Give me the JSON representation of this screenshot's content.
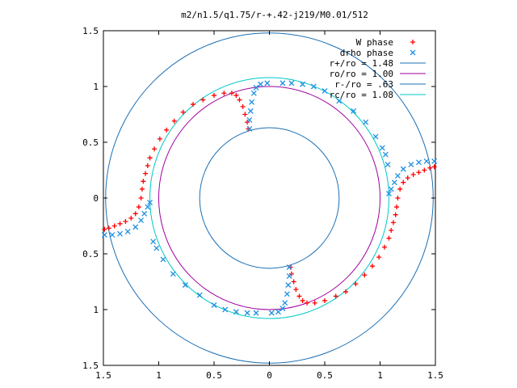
{
  "chart_data": {
    "type": "scatter",
    "title": "m2/n1.5/q1.75/r-+.42-j219/M0.01/512",
    "xlabel": "",
    "ylabel": "",
    "xlim": [
      -1.5,
      1.5
    ],
    "ylim": [
      -1.5,
      1.5
    ],
    "x_ticks": [
      -1.5,
      -1,
      -0.5,
      0,
      0.5,
      1,
      1.5
    ],
    "x_tick_labels": [
      "1.5",
      "1",
      "0.5",
      "0",
      "0.5",
      "1",
      "1.5"
    ],
    "y_ticks": [
      1.5,
      1,
      0.5,
      0,
      -0.5,
      -1,
      -1.5
    ],
    "y_tick_labels": [
      "1.5",
      "1",
      "0.5",
      "0",
      "0.5",
      "1",
      "1.5"
    ],
    "grid": false,
    "legend_position": "top-right",
    "series": [
      {
        "name": "W phase",
        "marker": "plus",
        "color": "#ff0000",
        "points": [
          [
            -1.49,
            -0.28
          ],
          [
            -1.45,
            -0.27
          ],
          [
            -1.4,
            -0.25
          ],
          [
            -1.35,
            -0.23
          ],
          [
            -1.3,
            -0.21
          ],
          [
            -1.25,
            -0.18
          ],
          [
            -1.21,
            -0.14
          ],
          [
            -1.18,
            -0.08
          ],
          [
            -1.16,
            0.0
          ],
          [
            -1.15,
            0.08
          ],
          [
            -1.14,
            0.15
          ],
          [
            -1.12,
            0.22
          ],
          [
            -1.1,
            0.29
          ],
          [
            -1.08,
            0.36
          ],
          [
            -1.04,
            0.44
          ],
          [
            -0.99,
            0.53
          ],
          [
            -0.93,
            0.61
          ],
          [
            -0.86,
            0.69
          ],
          [
            -0.78,
            0.77
          ],
          [
            -0.69,
            0.84
          ],
          [
            -0.6,
            0.88
          ],
          [
            -0.5,
            0.92
          ],
          [
            -0.41,
            0.94
          ],
          [
            -0.34,
            0.94
          ],
          [
            -0.3,
            0.92
          ],
          [
            -0.27,
            0.88
          ],
          [
            -0.24,
            0.82
          ],
          [
            -0.22,
            0.75
          ],
          [
            -0.2,
            0.68
          ],
          [
            -0.19,
            0.62
          ],
          [
            1.49,
            0.28
          ],
          [
            1.45,
            0.27
          ],
          [
            1.4,
            0.25
          ],
          [
            1.35,
            0.23
          ],
          [
            1.3,
            0.21
          ],
          [
            1.25,
            0.18
          ],
          [
            1.21,
            0.14
          ],
          [
            1.18,
            0.08
          ],
          [
            1.16,
            0.0
          ],
          [
            1.15,
            -0.08
          ],
          [
            1.14,
            -0.15
          ],
          [
            1.12,
            -0.22
          ],
          [
            1.1,
            -0.29
          ],
          [
            1.08,
            -0.36
          ],
          [
            1.04,
            -0.44
          ],
          [
            0.99,
            -0.53
          ],
          [
            0.93,
            -0.61
          ],
          [
            0.86,
            -0.69
          ],
          [
            0.78,
            -0.77
          ],
          [
            0.69,
            -0.84
          ],
          [
            0.6,
            -0.88
          ],
          [
            0.5,
            -0.92
          ],
          [
            0.41,
            -0.94
          ],
          [
            0.34,
            -0.94
          ],
          [
            0.3,
            -0.92
          ],
          [
            0.27,
            -0.88
          ],
          [
            0.24,
            -0.82
          ],
          [
            0.22,
            -0.75
          ],
          [
            0.2,
            -0.68
          ],
          [
            0.19,
            -0.62
          ]
        ]
      },
      {
        "name": "drho phase",
        "marker": "cross",
        "color": "#1e8fe0",
        "points": [
          [
            1.49,
            0.33
          ],
          [
            1.42,
            0.33
          ],
          [
            1.35,
            0.32
          ],
          [
            1.28,
            0.3
          ],
          [
            1.21,
            0.26
          ],
          [
            1.16,
            0.2
          ],
          [
            1.13,
            0.14
          ],
          [
            1.1,
            0.08
          ],
          [
            1.08,
            0.04
          ],
          [
            1.07,
            0.3
          ],
          [
            1.05,
            0.39
          ],
          [
            1.02,
            0.45
          ],
          [
            0.96,
            0.55
          ],
          [
            0.87,
            0.68
          ],
          [
            0.76,
            0.78
          ],
          [
            0.63,
            0.87
          ],
          [
            0.5,
            0.96
          ],
          [
            0.4,
            1.0
          ],
          [
            0.3,
            1.02
          ],
          [
            0.2,
            1.03
          ],
          [
            0.12,
            1.03
          ],
          [
            -0.02,
            1.03
          ],
          [
            -0.08,
            1.02
          ],
          [
            -0.12,
            0.99
          ],
          [
            -0.14,
            0.94
          ],
          [
            -0.16,
            0.86
          ],
          [
            -0.17,
            0.78
          ],
          [
            -0.18,
            0.7
          ],
          [
            -0.18,
            0.62
          ],
          [
            -1.49,
            -0.33
          ],
          [
            -1.42,
            -0.33
          ],
          [
            -1.35,
            -0.32
          ],
          [
            -1.28,
            -0.3
          ],
          [
            -1.21,
            -0.26
          ],
          [
            -1.16,
            -0.2
          ],
          [
            -1.13,
            -0.14
          ],
          [
            -1.1,
            -0.08
          ],
          [
            -1.08,
            -0.04
          ],
          [
            -1.05,
            -0.39
          ],
          [
            -1.02,
            -0.45
          ],
          [
            -0.96,
            -0.55
          ],
          [
            -0.87,
            -0.68
          ],
          [
            -0.76,
            -0.78
          ],
          [
            -0.63,
            -0.87
          ],
          [
            -0.5,
            -0.96
          ],
          [
            -0.4,
            -1.0
          ],
          [
            -0.3,
            -1.02
          ],
          [
            -0.2,
            -1.03
          ],
          [
            -0.12,
            -1.03
          ],
          [
            0.02,
            -1.03
          ],
          [
            0.08,
            -1.02
          ],
          [
            0.12,
            -0.99
          ],
          [
            0.14,
            -0.94
          ],
          [
            0.16,
            -0.86
          ],
          [
            0.17,
            -0.78
          ],
          [
            0.18,
            -0.7
          ],
          [
            0.18,
            -0.62
          ]
        ]
      },
      {
        "name": "r+/ro = 1.48",
        "shape": "circle",
        "radius": 1.48,
        "color": "#1a6fb5"
      },
      {
        "name": "ro/ro = 1.00",
        "shape": "circle",
        "radius": 1.0,
        "color": "#a000a0"
      },
      {
        "name": "r-/ro = .63",
        "shape": "circle",
        "radius": 0.63,
        "color": "#1a6fb5"
      },
      {
        "name": "rc/ro = 1.08",
        "shape": "circle",
        "radius": 1.08,
        "color": "#00c8c8"
      }
    ]
  }
}
